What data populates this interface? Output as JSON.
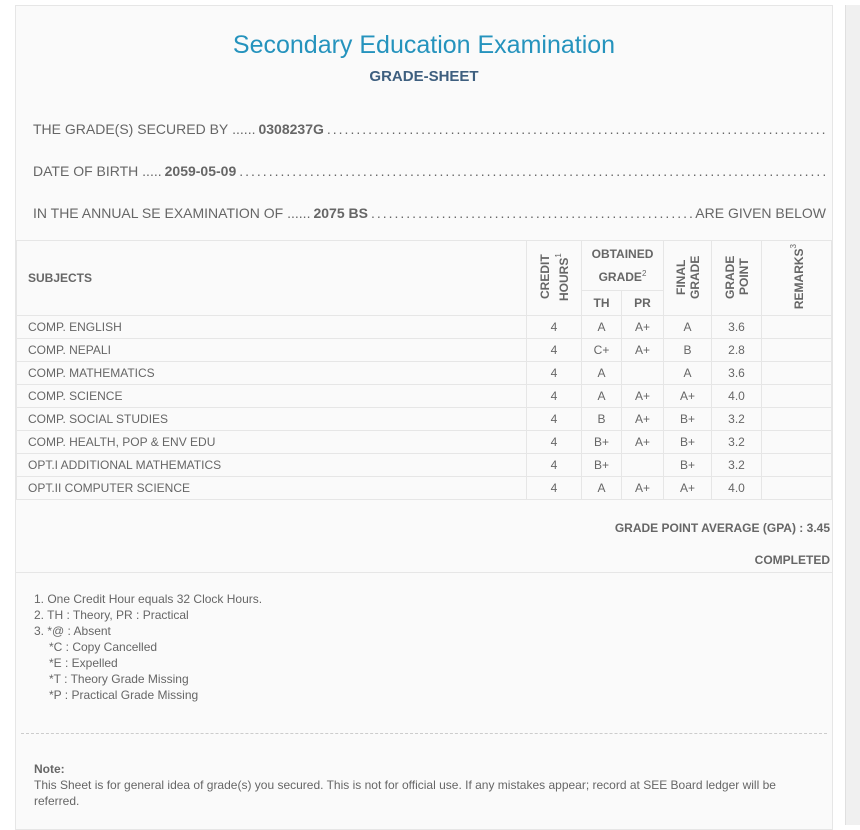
{
  "header": {
    "title": "Secondary Education Examination",
    "subtitle": "GRADE-SHEET"
  },
  "info": {
    "secured_by_label": "THE GRADE(S) SECURED BY",
    "symbol_no": "0308237G",
    "dob_label": "DATE OF BIRTH",
    "dob": "2059-05-09",
    "exam_label": "IN THE ANNUAL SE EXAMINATION OF",
    "exam_year": "2075 BS",
    "exam_suffix": "ARE GIVEN BELOW"
  },
  "table": {
    "headers": {
      "subjects": "SUBJECTS",
      "credit": "CREDIT HOURS",
      "credit_sup": "1",
      "obtained": "OBTAINED GRADE",
      "obtained_sup": "2",
      "th": "TH",
      "pr": "PR",
      "final": "FINAL GRADE",
      "gp": "GRADE POINT",
      "remarks": "REMARKS",
      "remarks_sup": "3"
    },
    "rows": [
      {
        "subject": "COMP. ENGLISH",
        "credit": "4",
        "th": "A",
        "pr": "A+",
        "final": "A",
        "gp": "3.6",
        "remarks": ""
      },
      {
        "subject": "COMP. NEPALI",
        "credit": "4",
        "th": "C+",
        "pr": "A+",
        "final": "B",
        "gp": "2.8",
        "remarks": ""
      },
      {
        "subject": "COMP. MATHEMATICS",
        "credit": "4",
        "th": "A",
        "pr": "",
        "final": "A",
        "gp": "3.6",
        "remarks": ""
      },
      {
        "subject": "COMP. SCIENCE",
        "credit": "4",
        "th": "A",
        "pr": "A+",
        "final": "A+",
        "gp": "4.0",
        "remarks": ""
      },
      {
        "subject": "COMP. SOCIAL STUDIES",
        "credit": "4",
        "th": "B",
        "pr": "A+",
        "final": "B+",
        "gp": "3.2",
        "remarks": ""
      },
      {
        "subject": "COMP. HEALTH, POP & ENV EDU",
        "credit": "4",
        "th": "B+",
        "pr": "A+",
        "final": "B+",
        "gp": "3.2",
        "remarks": ""
      },
      {
        "subject": "OPT.I ADDITIONAL MATHEMATICS",
        "credit": "4",
        "th": "B+",
        "pr": "",
        "final": "B+",
        "gp": "3.2",
        "remarks": ""
      },
      {
        "subject": "OPT.II COMPUTER SCIENCE",
        "credit": "4",
        "th": "A",
        "pr": "A+",
        "final": "A+",
        "gp": "4.0",
        "remarks": ""
      }
    ]
  },
  "summary": {
    "gpa_label": "GRADE POINT AVERAGE (GPA) :",
    "gpa": "3.45",
    "status": "COMPLETED"
  },
  "footnotes": [
    "1. One Credit Hour equals 32 Clock Hours.",
    "2. TH : Theory, PR : Practical",
    "3. *@ : Absent",
    "*C : Copy Cancelled",
    "*E : Expelled",
    "*T : Theory Grade Missing",
    "*P : Practical Grade Missing"
  ],
  "note": {
    "label": "Note:",
    "text": "This Sheet is for general idea of grade(s) you secured. This is not for official use. If any mistakes appear; record at SEE Board ledger will be referred."
  }
}
